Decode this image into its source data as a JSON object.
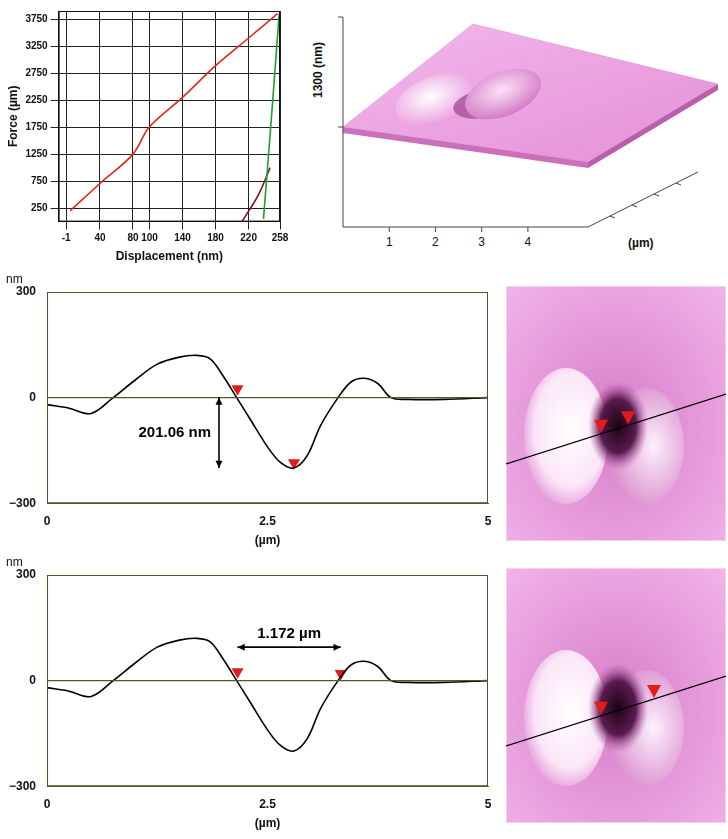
{
  "chart_data": [
    {
      "type": "line",
      "x_label": "Displacement (nm)",
      "y_label": "Force (µm)",
      "xlim": [
        -10,
        258
      ],
      "xticks": [
        -1,
        40,
        80,
        100,
        140,
        180,
        220,
        258
      ],
      "ylim": [
        0,
        3900
      ],
      "yticks": [
        250,
        750,
        1250,
        1750,
        2250,
        2750,
        3250,
        3750
      ],
      "grid": true,
      "series": [
        {
          "color": "#e8231d",
          "x": [
            4,
            40,
            80,
            100,
            140,
            180,
            220,
            255
          ],
          "values": [
            200,
            705,
            1250,
            1755,
            2300,
            2890,
            3400,
            3850
          ]
        },
        {
          "color": "#1fa02a",
          "x": [
            238,
            248,
            257
          ],
          "values": [
            50,
            2000,
            3850
          ]
        },
        {
          "color": "#8b1020",
          "x": [
            212,
            232,
            246
          ],
          "values": [
            0,
            500,
            1000
          ]
        }
      ]
    },
    {
      "type": "line",
      "y_label": "nm",
      "x_label": "(µm)",
      "xlim": [
        0,
        5
      ],
      "xticks": [
        0,
        2.5,
        5
      ],
      "ylim": [
        -300,
        300
      ],
      "yticks": [
        {
          "value": -300,
          "label": "−300"
        },
        0,
        300
      ],
      "baseline": 0,
      "grid": false,
      "series": [
        {
          "color": "#000000",
          "x": [
            0,
            0.25,
            0.5,
            0.75,
            1.0,
            1.25,
            1.5,
            1.7,
            1.85,
            2.0,
            2.15,
            2.3,
            2.5,
            2.65,
            2.8,
            2.95,
            3.1,
            3.3,
            3.45,
            3.6,
            3.75,
            3.9,
            4.1,
            4.5,
            5.0
          ],
          "values": [
            -20,
            -30,
            -45,
            0,
            50,
            95,
            115,
            120,
            110,
            60,
            0,
            -60,
            -140,
            -185,
            -200,
            -165,
            -80,
            0,
            45,
            55,
            40,
            0,
            -5,
            -5,
            0
          ]
        },
        {
          "type": "scatter",
          "marker": "triangle",
          "color": "#e31b1b",
          "x": [
            2.16,
            2.8
          ],
          "values": [
            25,
            -185
          ]
        }
      ],
      "annotations": [
        {
          "text": "201.06 nm",
          "x": [
            1.95,
            1.95
          ],
          "y": [
            0,
            -200
          ]
        }
      ]
    },
    {
      "type": "line",
      "y_label": "nm",
      "x_label": "(µm)",
      "xlim": [
        0,
        5
      ],
      "xticks": [
        0,
        2.5,
        5
      ],
      "ylim": [
        -300,
        300
      ],
      "yticks": [
        {
          "value": -300,
          "label": "−300"
        },
        0,
        300
      ],
      "baseline": 0,
      "grid": false,
      "series": [
        {
          "color": "#000000",
          "x": [
            0,
            0.25,
            0.5,
            0.75,
            1.0,
            1.25,
            1.5,
            1.7,
            1.85,
            2.0,
            2.15,
            2.3,
            2.5,
            2.65,
            2.8,
            2.95,
            3.1,
            3.3,
            3.45,
            3.6,
            3.75,
            3.9,
            4.1,
            4.5,
            5.0
          ],
          "values": [
            -20,
            -30,
            -45,
            0,
            50,
            95,
            115,
            120,
            110,
            60,
            0,
            -60,
            -140,
            -185,
            -200,
            -165,
            -80,
            0,
            45,
            55,
            40,
            0,
            -5,
            -5,
            0
          ]
        },
        {
          "type": "scatter",
          "marker": "triangle",
          "color": "#e31b1b",
          "x": [
            2.16,
            3.33
          ],
          "values": [
            25,
            20
          ]
        }
      ],
      "annotations": [
        {
          "text": "1.172 µm",
          "x": [
            2.16,
            3.33
          ],
          "y": [
            95,
            95
          ]
        }
      ]
    }
  ],
  "surface_3d": {
    "z_label": "1300 (nm)",
    "x_label": "(µm)",
    "xlim": [
      0,
      5.3
    ],
    "xticks": [
      1,
      2,
      3,
      4
    ]
  }
}
